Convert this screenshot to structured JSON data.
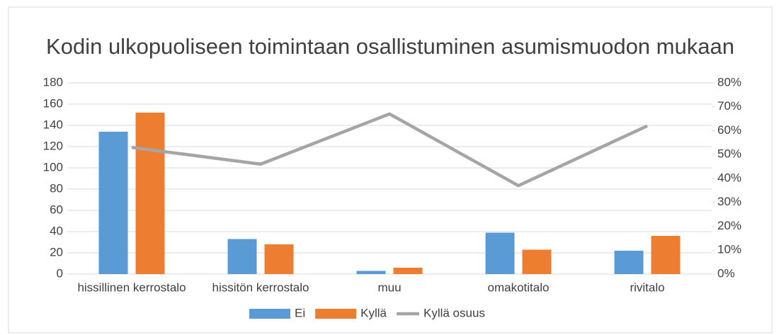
{
  "chart_data": {
    "type": "bar",
    "title": "Kodin ulkopuoliseen toimintaan osallistuminen asumismuodon mukaan",
    "categories": [
      "hissillinen kerrostalo",
      "hissitön kerrostalo",
      "muu",
      "omakotitalo",
      "rivitalo"
    ],
    "series": [
      {
        "name": "Ei",
        "color": "#5b9bd5",
        "type": "bar",
        "values": [
          134,
          33,
          3,
          39,
          22
        ]
      },
      {
        "name": "Kyllä",
        "color": "#ed7d31",
        "type": "bar",
        "values": [
          152,
          28,
          6,
          23,
          36
        ]
      },
      {
        "name": "Kyllä osuus",
        "color": "#a5a5a5",
        "type": "line",
        "axis": "y2",
        "values": [
          53,
          46,
          67,
          37,
          62
        ]
      }
    ],
    "ylim": [
      0,
      180
    ],
    "yticks": [
      0,
      20,
      40,
      60,
      80,
      100,
      120,
      140,
      160,
      180
    ],
    "y2lim": [
      0,
      80
    ],
    "y2ticks": [
      {
        "value": 0,
        "label": "0%"
      },
      {
        "value": 10,
        "label": "10%"
      },
      {
        "value": 20,
        "label": "20%"
      },
      {
        "value": 30,
        "label": "30%"
      },
      {
        "value": 40,
        "label": "40%"
      },
      {
        "value": 50,
        "label": "50%"
      },
      {
        "value": 60,
        "label": "60%"
      },
      {
        "value": 70,
        "label": "70%"
      },
      {
        "value": 80,
        "label": "80%"
      }
    ],
    "grid": true,
    "legend": "bottom"
  }
}
